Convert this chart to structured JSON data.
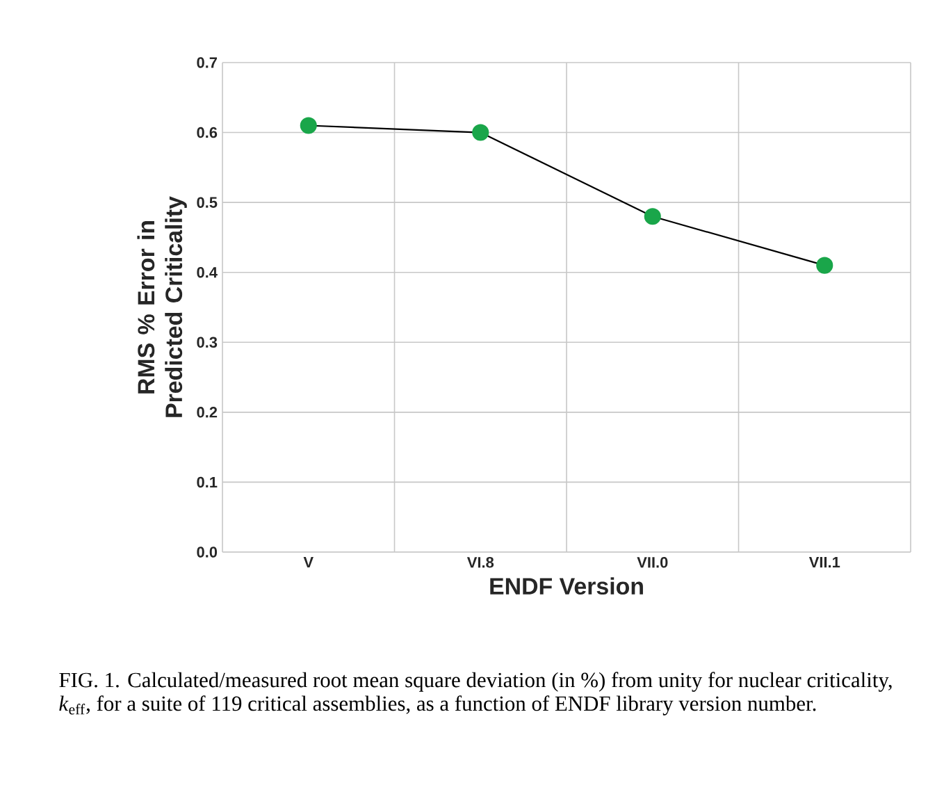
{
  "chart_data": {
    "type": "line",
    "xlabel": "ENDF Version",
    "ylabel": "RMS % Error in Predicted Criticality",
    "categories": [
      "V",
      "VI.8",
      "VII.0",
      "VII.1"
    ],
    "series": [
      {
        "color": "#1aa64a",
        "values": [
          0.61,
          0.6,
          0.48,
          0.41
        ]
      }
    ],
    "ylim": [
      0,
      0.7
    ],
    "yticks": [
      {
        "value": 0,
        "label": "0.0"
      },
      {
        "value": 0.1,
        "label": "0.1"
      },
      {
        "value": 0.2,
        "label": "0.2"
      },
      {
        "value": 0.3,
        "label": "0.3"
      },
      {
        "value": 0.4,
        "label": "0.4"
      },
      {
        "value": 0.5,
        "label": "0.5"
      },
      {
        "value": 0.6,
        "label": "0.6"
      },
      {
        "value": 0.7,
        "label": "0.7"
      }
    ],
    "grid": true,
    "marker": "circle",
    "line_style": "solid",
    "annotations": [
      "FIG. 1. Calculated/measured root mean square deviation (in %) from unity for nuclear criticality, *k*$_{eff}$, for a suite of 119 critical assemblies, as a function of ENDF library version number."
    ]
  }
}
